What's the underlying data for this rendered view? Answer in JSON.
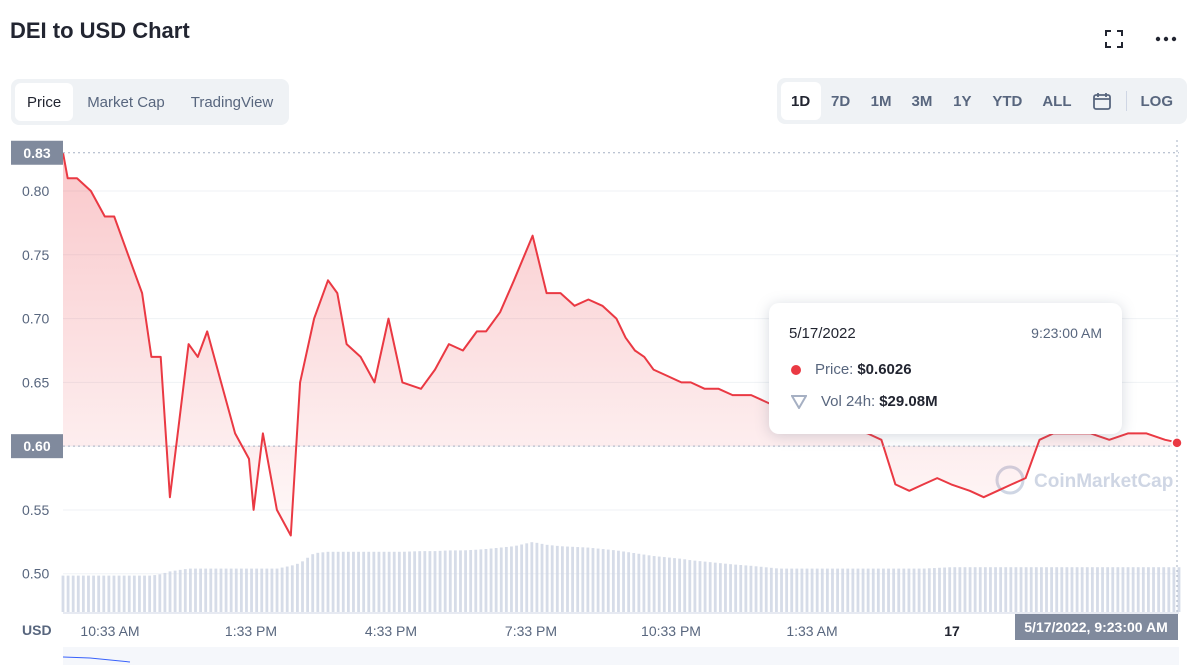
{
  "header": {
    "title": "DEI to USD Chart"
  },
  "icons": {
    "fullscreen": "fullscreen-icon",
    "more": "more-icon",
    "calendar": "calendar-icon",
    "volume": "volume-icon",
    "logo": "coinmarketcap-logo-icon"
  },
  "tabs": [
    {
      "label": "Price",
      "active": true
    },
    {
      "label": "Market Cap",
      "active": false
    },
    {
      "label": "TradingView",
      "active": false
    }
  ],
  "ranges": [
    {
      "label": "1D",
      "active": true
    },
    {
      "label": "7D",
      "active": false
    },
    {
      "label": "1M",
      "active": false
    },
    {
      "label": "3M",
      "active": false
    },
    {
      "label": "1Y",
      "active": false
    },
    {
      "label": "YTD",
      "active": false
    },
    {
      "label": "ALL",
      "active": false
    }
  ],
  "log_label": "LOG",
  "tooltip": {
    "date": "5/17/2022",
    "time": "9:23:00 AM",
    "price_label": "Price:",
    "price_value": "$0.6026",
    "vol_label": "Vol 24h:",
    "vol_value": "$29.08M"
  },
  "watermark": "CoinMarketCap",
  "colors": {
    "line": "#ea3943",
    "volume": "#cfd6e4",
    "label_bg": "#808a9d",
    "accent_bg": "#eff2f5"
  },
  "chart_data": {
    "type": "line",
    "x_time_labels": [
      "10:33 AM",
      "1:33 PM",
      "4:33 PM",
      "7:33 PM",
      "10:33 PM",
      "1:33 AM",
      "17"
    ],
    "y_ticks": [
      0.5,
      0.55,
      0.6,
      0.65,
      0.7,
      0.75,
      0.8
    ],
    "ylim": [
      0.47,
      0.84
    ],
    "y_unit_label": "USD",
    "high_label": "0.83",
    "current_label": "0.60",
    "crosshair_time_label": "5/17/2022, 9:23:00 AM",
    "x_hours_from_1033am": [
      -0.1,
      0,
      0.2,
      0.5,
      0.8,
      1.0,
      1.3,
      1.6,
      1.8,
      2.0,
      2.2,
      2.4,
      2.6,
      2.8,
      3.0,
      3.3,
      3.6,
      3.9,
      4.0,
      4.2,
      4.5,
      4.8,
      5.0,
      5.3,
      5.6,
      5.8,
      6.0,
      6.3,
      6.6,
      6.9,
      7.2,
      7.6,
      7.9,
      8.2,
      8.5,
      8.8,
      9.0,
      9.3,
      9.6,
      10.0,
      10.3,
      10.6,
      10.9,
      11.2,
      11.5,
      11.8,
      12.0,
      12.2,
      12.4,
      12.6,
      12.9,
      13.2,
      13.4,
      13.7,
      14.0,
      14.3,
      14.7,
      15.0,
      15.3,
      15.6,
      15.9,
      16.2,
      16.5,
      16.8,
      17.2,
      17.5,
      17.8,
      18.1,
      18.4,
      18.7,
      19.0,
      19.4,
      19.7,
      20.0,
      20.3,
      20.6,
      20.9,
      21.2,
      21.6,
      22.0,
      22.4,
      22.8,
      23.2,
      23.6,
      23.9
    ],
    "price": [
      0.83,
      0.81,
      0.81,
      0.8,
      0.78,
      0.78,
      0.75,
      0.72,
      0.67,
      0.67,
      0.56,
      0.62,
      0.68,
      0.67,
      0.69,
      0.65,
      0.61,
      0.59,
      0.55,
      0.61,
      0.55,
      0.53,
      0.65,
      0.7,
      0.73,
      0.72,
      0.68,
      0.67,
      0.65,
      0.7,
      0.65,
      0.645,
      0.66,
      0.68,
      0.675,
      0.69,
      0.69,
      0.705,
      0.73,
      0.765,
      0.72,
      0.72,
      0.71,
      0.715,
      0.71,
      0.7,
      0.685,
      0.675,
      0.67,
      0.66,
      0.655,
      0.65,
      0.65,
      0.645,
      0.645,
      0.64,
      0.64,
      0.635,
      0.63,
      0.625,
      0.625,
      0.62,
      0.615,
      0.615,
      0.61,
      0.605,
      0.57,
      0.565,
      0.57,
      0.575,
      0.57,
      0.565,
      0.56,
      0.565,
      0.57,
      0.575,
      0.605,
      0.61,
      0.61,
      0.61,
      0.605,
      0.61,
      0.61,
      0.605,
      0.6026
    ],
    "volume_relative": [
      0.52,
      0.52,
      0.52,
      0.52,
      0.52,
      0.52,
      0.52,
      0.52,
      0.52,
      0.54,
      0.58,
      0.6,
      0.62,
      0.62,
      0.62,
      0.62,
      0.62,
      0.62,
      0.62,
      0.62,
      0.62,
      0.66,
      0.7,
      0.84,
      0.86,
      0.86,
      0.86,
      0.86,
      0.86,
      0.86,
      0.86,
      0.87,
      0.87,
      0.88,
      0.88,
      0.89,
      0.9,
      0.92,
      0.94,
      1.0,
      0.96,
      0.94,
      0.93,
      0.92,
      0.9,
      0.88,
      0.86,
      0.84,
      0.82,
      0.8,
      0.78,
      0.76,
      0.74,
      0.72,
      0.7,
      0.68,
      0.66,
      0.64,
      0.62,
      0.62,
      0.62,
      0.62,
      0.62,
      0.62,
      0.62,
      0.62,
      0.62,
      0.62,
      0.62,
      0.63,
      0.64,
      0.64,
      0.64,
      0.64,
      0.64,
      0.64,
      0.64,
      0.64,
      0.64,
      0.64,
      0.64,
      0.64,
      0.64,
      0.64,
      0.64
    ]
  }
}
